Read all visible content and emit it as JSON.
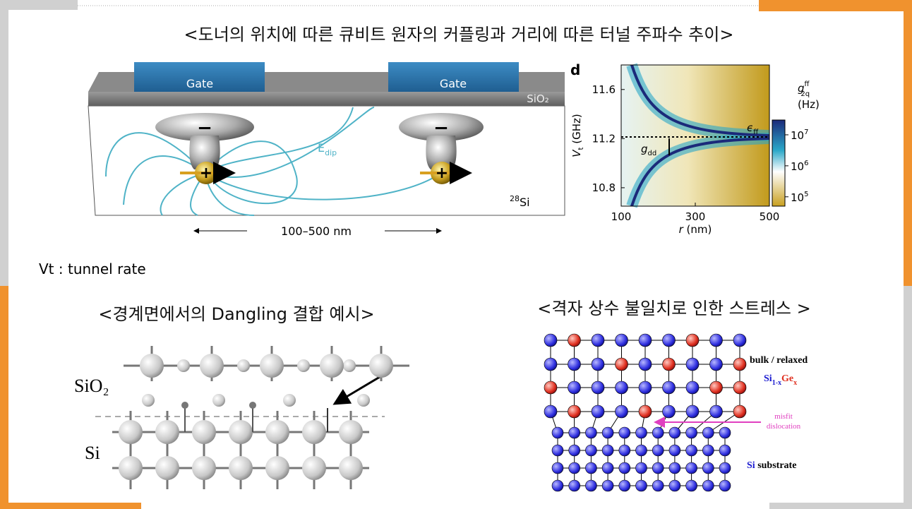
{
  "title": "<도너의 위치에 따른 큐비트 원자의 커플링과 거리에 따른 터널 주파수 추이>",
  "donor_figure": {
    "gates": [
      "Gate",
      "Gate"
    ],
    "oxide": "SiO₂",
    "field": {
      "base": "E",
      "sub": "dip"
    },
    "charges": [
      "−",
      "+",
      "−",
      "+"
    ],
    "substrate": {
      "sup": "28",
      "base": "Si"
    },
    "distance": "100–500 nm"
  },
  "heatmap": {
    "panel": "d",
    "ylabel": {
      "base": "V",
      "sub": "t",
      "unit": " (GHz)"
    },
    "xlabel": {
      "base": "r",
      "unit": " (nm)"
    },
    "xlim": [
      100,
      500
    ],
    "xticks": [
      100,
      300,
      500
    ],
    "ylim": [
      10.65,
      11.8
    ],
    "yticks": [
      10.8,
      11.2,
      11.6
    ],
    "annotations": [
      {
        "base": "ϵ",
        "sub": "ff"
      },
      {
        "base": "g",
        "sub": "dd"
      }
    ],
    "colorbar": {
      "label": {
        "base": "g",
        "sup": "ff",
        "sub": "2q",
        "unit": "(Hz)"
      },
      "log_scale": true,
      "lim": [
        50000,
        30000000
      ],
      "ticks": [
        {
          "value": 10000000,
          "base": "10",
          "exp": "7"
        },
        {
          "value": 1000000,
          "base": "10",
          "exp": "6"
        },
        {
          "value": 100000,
          "base": "10",
          "exp": "5"
        }
      ]
    }
  },
  "note": "Vt : tunnel rate",
  "dangling": {
    "caption": "<경계면에서의 Dangling 결합 예시>",
    "labels": [
      "SiO₂",
      "Si"
    ]
  },
  "lattice": {
    "caption": "<격자 상수 불일치로 인한 스트레스 >",
    "bulk": "bulk / relaxed",
    "alloy": {
      "si": "Si",
      "si_sub": "1-x",
      "ge": "Ge",
      "ge_sub": "x"
    },
    "misfit": [
      "misfit",
      "dislocation"
    ],
    "substrate": {
      "si": "Si",
      "rest": " substrate"
    }
  }
}
